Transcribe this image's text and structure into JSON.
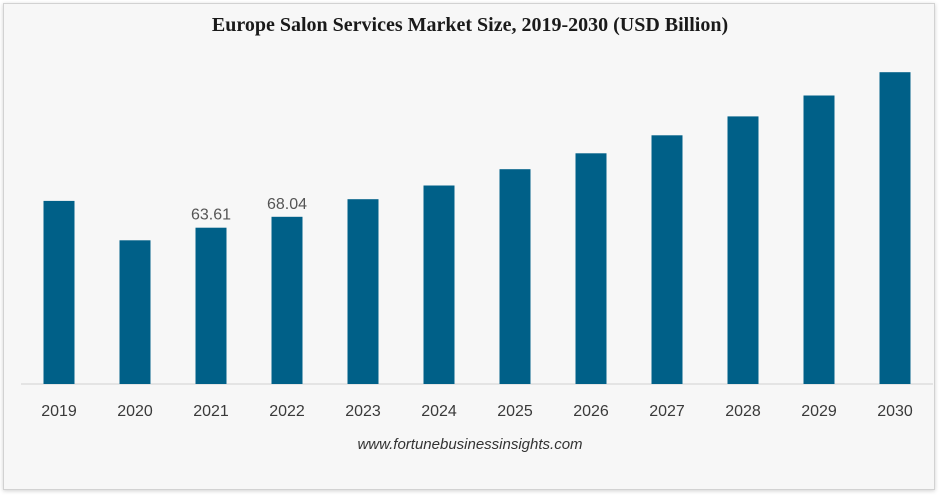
{
  "chart_data": {
    "type": "bar",
    "title": "Europe Salon Services Market Size, 2019-2030 (USD Billion)",
    "xlabel": "",
    "ylabel": "",
    "categories": [
      "2019",
      "2020",
      "2021",
      "2022",
      "2023",
      "2024",
      "2025",
      "2026",
      "2027",
      "2028",
      "2029",
      "2030"
    ],
    "values": [
      74.5,
      58.5,
      63.61,
      68.04,
      75.2,
      80.8,
      87.4,
      93.9,
      101.2,
      108.9,
      117.4,
      126.9
    ],
    "data_labels": [
      "",
      "",
      "63.61",
      "68.04",
      "",
      "",
      "",
      "",
      "",
      "",
      "",
      ""
    ],
    "ylim": [
      0,
      140
    ],
    "grid": false,
    "legend": "none",
    "bar_color": "#006088"
  },
  "source": "www.fortunebusinessinsights.com"
}
